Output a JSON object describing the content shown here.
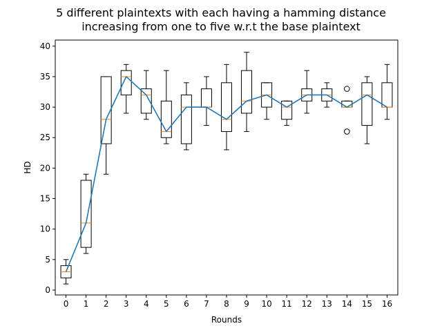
{
  "chart_data": {
    "type": "box",
    "title": "5 different plaintexts with each having a hamming distance\nincreasing from one to five w.r.t the base plaintext",
    "xlabel": "Rounds",
    "ylabel": "HD",
    "categories": [
      "0",
      "1",
      "2",
      "3",
      "4",
      "5",
      "6",
      "7",
      "8",
      "9",
      "10",
      "11",
      "12",
      "13",
      "14",
      "15",
      "16"
    ],
    "ylim": [
      -0.8,
      41.0
    ],
    "yticks": [
      0,
      5,
      10,
      15,
      20,
      25,
      30,
      35,
      40
    ],
    "grid": false,
    "legend": "none",
    "boxes": [
      {
        "whislo": 1,
        "q1": 2,
        "med": 3,
        "q3": 4,
        "whishi": 5,
        "fliers": []
      },
      {
        "whislo": 6,
        "q1": 7,
        "med": 11,
        "q3": 18,
        "whishi": 19,
        "fliers": []
      },
      {
        "whislo": 19,
        "q1": 24,
        "med": 28,
        "q3": 35,
        "whishi": 35,
        "fliers": []
      },
      {
        "whislo": 29,
        "q1": 32,
        "med": 35,
        "q3": 36,
        "whishi": 37,
        "fliers": []
      },
      {
        "whislo": 28,
        "q1": 29,
        "med": 32,
        "q3": 33,
        "whishi": 36,
        "fliers": []
      },
      {
        "whislo": 24,
        "q1": 25,
        "med": 26,
        "q3": 31,
        "whishi": 36,
        "fliers": []
      },
      {
        "whislo": 23,
        "q1": 24,
        "med": 30,
        "q3": 32,
        "whishi": 34,
        "fliers": []
      },
      {
        "whislo": 27,
        "q1": 30,
        "med": 30,
        "q3": 33,
        "whishi": 35,
        "fliers": []
      },
      {
        "whislo": 23,
        "q1": 26,
        "med": 28,
        "q3": 34,
        "whishi": 37,
        "fliers": []
      },
      {
        "whislo": 26,
        "q1": 29,
        "med": 31,
        "q3": 36,
        "whishi": 39,
        "fliers": []
      },
      {
        "whislo": 28,
        "q1": 30,
        "med": 32,
        "q3": 34,
        "whishi": 34,
        "fliers": []
      },
      {
        "whislo": 27,
        "q1": 28,
        "med": 30,
        "q3": 31,
        "whishi": 31,
        "fliers": []
      },
      {
        "whislo": 29,
        "q1": 31,
        "med": 32,
        "q3": 33,
        "whishi": 36,
        "fliers": []
      },
      {
        "whislo": 30,
        "q1": 31,
        "med": 32,
        "q3": 33,
        "whishi": 34,
        "fliers": []
      },
      {
        "whislo": 30,
        "q1": 30,
        "med": 30,
        "q3": 31,
        "whishi": 31,
        "fliers": [
          33,
          26
        ]
      },
      {
        "whislo": 24,
        "q1": 27,
        "med": 32,
        "q3": 34,
        "whishi": 35,
        "fliers": []
      },
      {
        "whislo": 28,
        "q1": 30,
        "med": 30,
        "q3": 34,
        "whishi": 37,
        "fliers": []
      }
    ],
    "series": [
      {
        "type": "line",
        "values": [
          3,
          11,
          28,
          35,
          32,
          26,
          30,
          30,
          28,
          31,
          32,
          30,
          32,
          32,
          30,
          32,
          30
        ]
      }
    ],
    "colors": {
      "box": "#000000",
      "median": "#ff7f0e",
      "line": "#1f77b4"
    }
  }
}
